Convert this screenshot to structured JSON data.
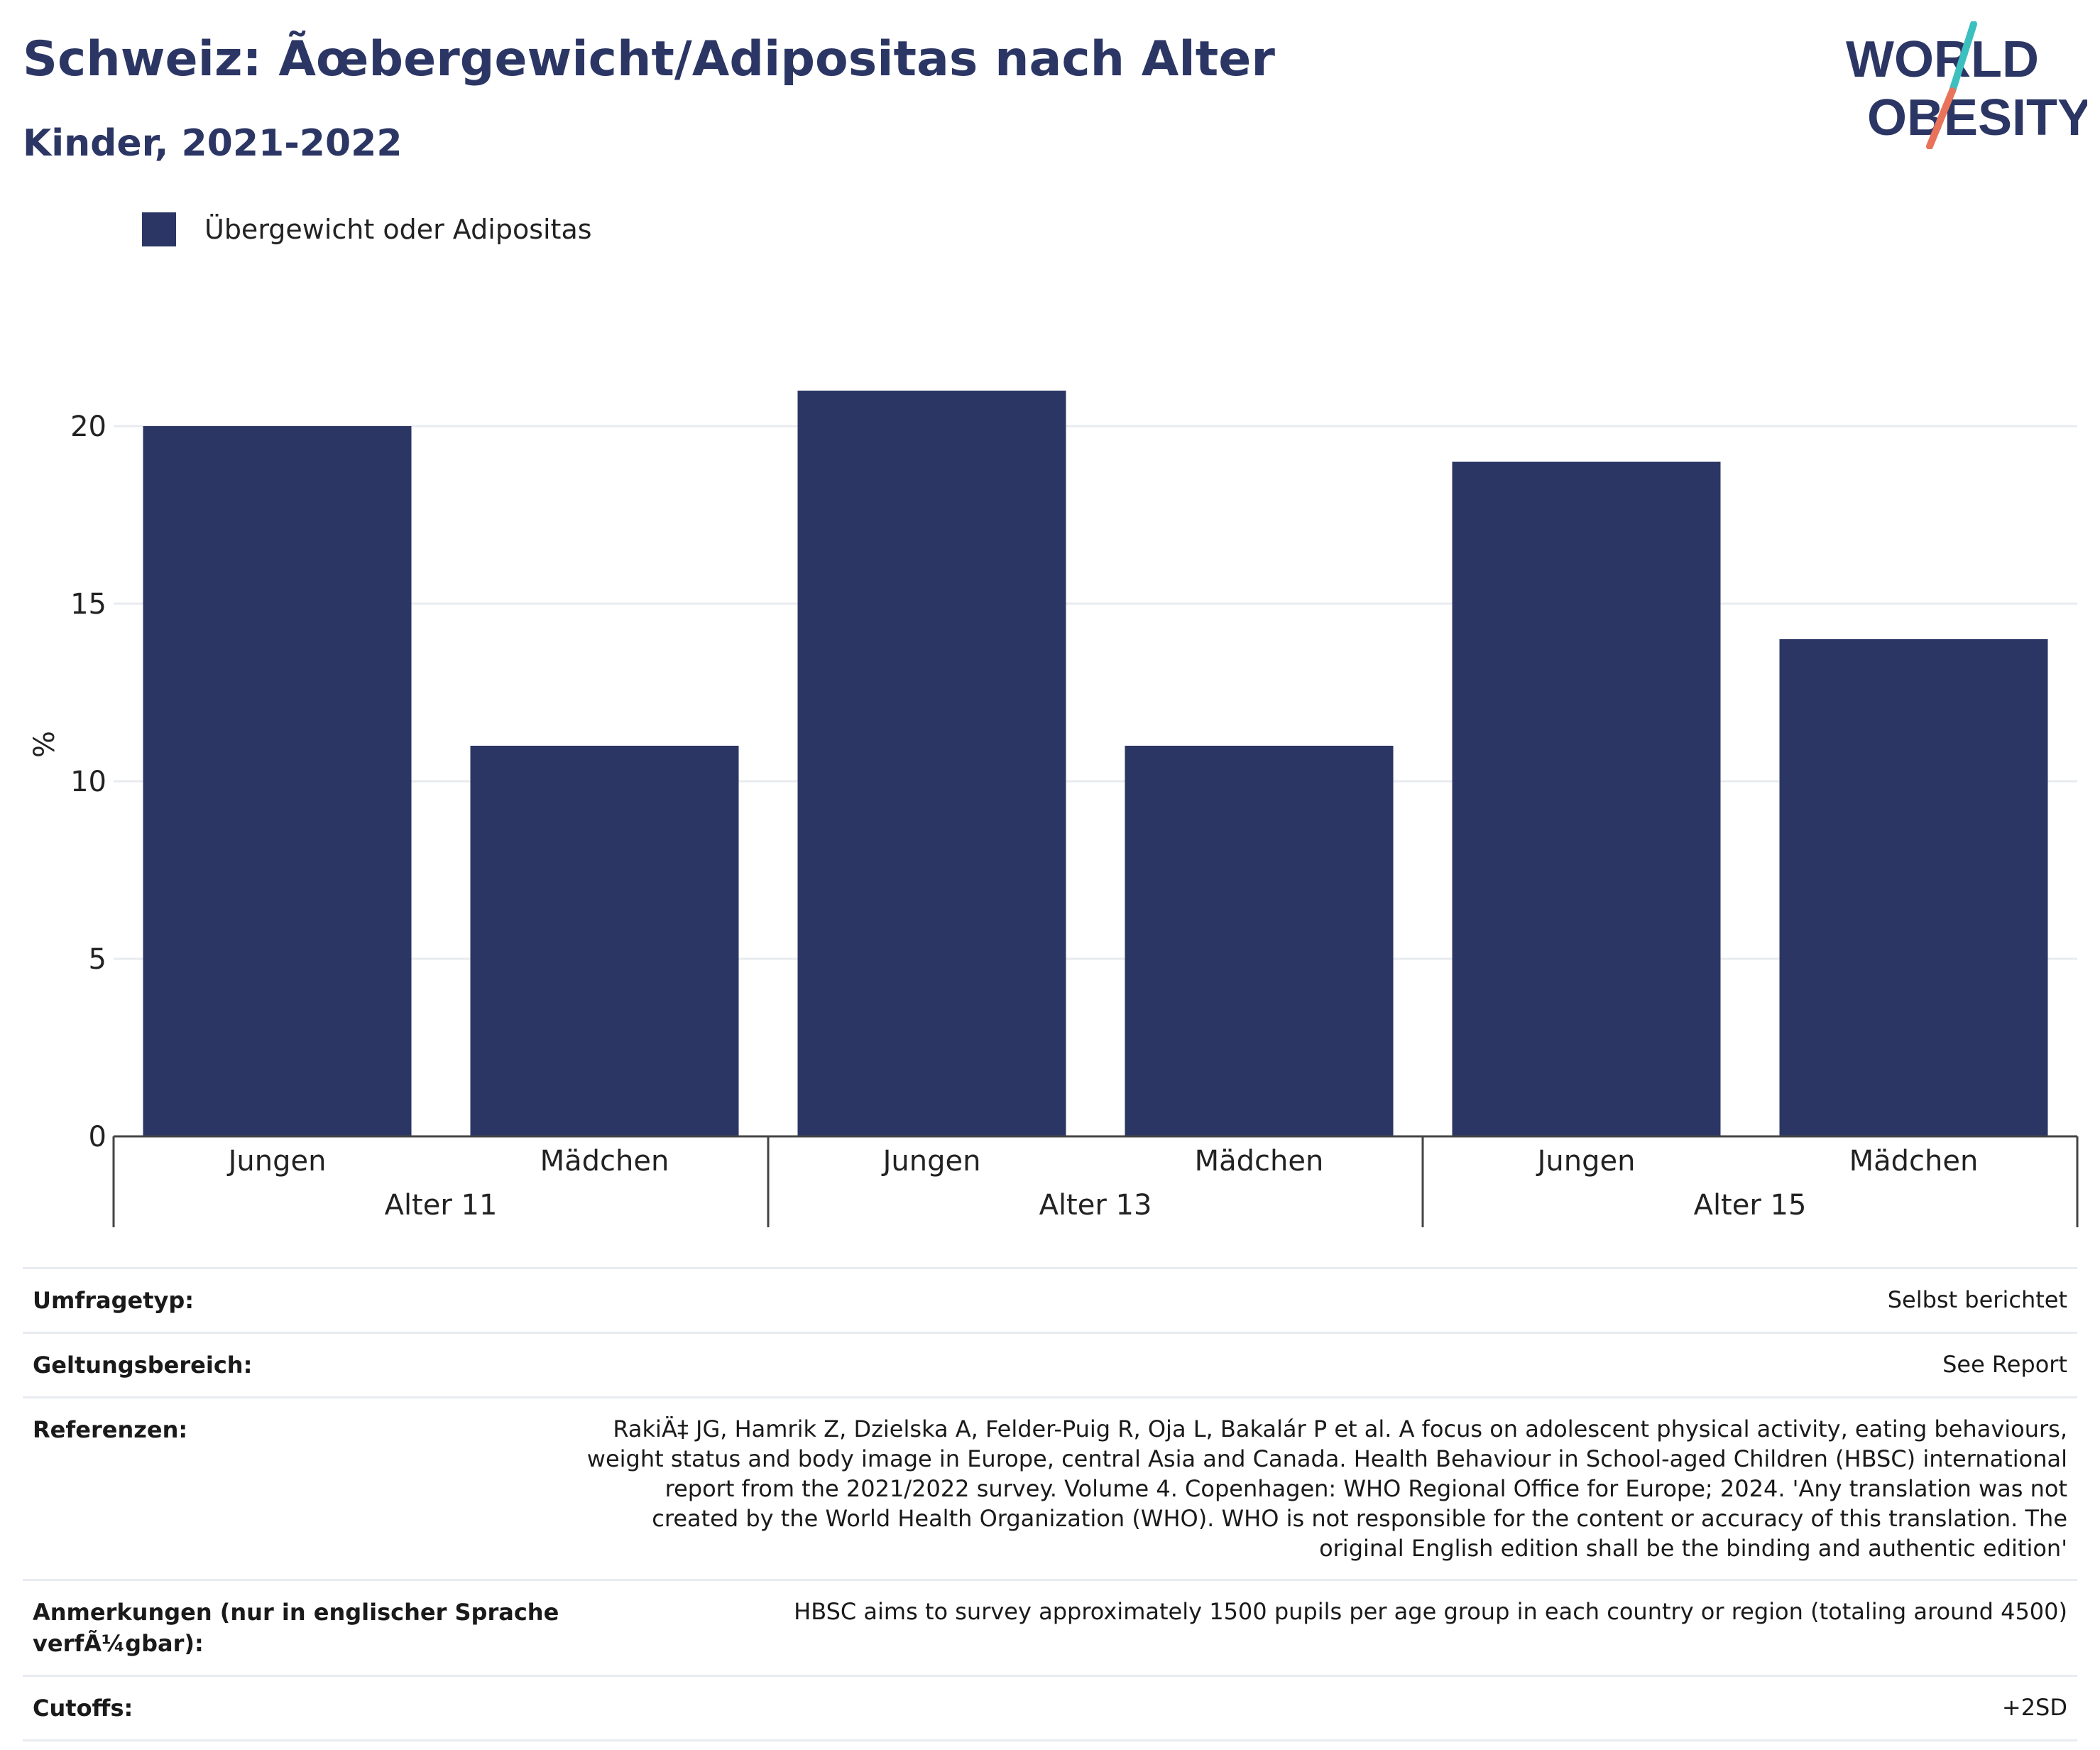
{
  "header": {
    "title": "Schweiz: Ãœbergewicht/Adipositas nach Alter",
    "subtitle": "Kinder, 2021-2022"
  },
  "logo": {
    "line1": "WORLD",
    "line2": "OBESITY"
  },
  "colors": {
    "bar": "#2b3664",
    "title": "#2b3664",
    "grid": "#e8ebf0",
    "logo_teal": "#3bbfbf",
    "logo_coral": "#e8735a"
  },
  "chart_data": {
    "type": "bar",
    "legend": {
      "label": "Übergewicht oder Adipositas",
      "position": "top-left"
    },
    "ylabel": "%",
    "ylim": [
      0,
      25
    ],
    "yticks": [
      0,
      5,
      10,
      15,
      20
    ],
    "grid": true,
    "groups": [
      "Alter 11",
      "Alter 13",
      "Alter 15"
    ],
    "categories": [
      "Jungen",
      "Mädchen",
      "Jungen",
      "Mädchen",
      "Jungen",
      "Mädchen"
    ],
    "series": [
      {
        "name": "Übergewicht oder Adipositas",
        "values": [
          20,
          11,
          21,
          11,
          19,
          14
        ]
      }
    ]
  },
  "meta": [
    {
      "key": "Umfragetyp:",
      "value": "Selbst berichtet"
    },
    {
      "key": "Geltungsbereich:",
      "value": "See Report"
    },
    {
      "key": "Referenzen:",
      "value": "RakiÄ‡ JG, Hamrik Z, Dzielska A, Felder-Puig R, Oja L, Bakalár P et al. A focus on adolescent physical activity, eating behaviours, weight status and body image in Europe, central Asia and Canada. Health Behaviour in School-aged Children (HBSC) international report from the 2021/2022 survey. Volume 4. Copenhagen: WHO Regional Office for Europe; 2024. 'Any translation was not created by the World Health Organization (WHO). WHO is not responsible for the content or accuracy of this translation. The original English edition shall be the binding and authentic edition'"
    },
    {
      "key": "Anmerkungen (nur in englischer Sprache verfÃ¼gbar):",
      "value": "HBSC aims to survey approximately 1500 pupils per age group in each country or region (totaling around 4500)"
    },
    {
      "key": "Cutoffs:",
      "value": "+2SD"
    }
  ]
}
